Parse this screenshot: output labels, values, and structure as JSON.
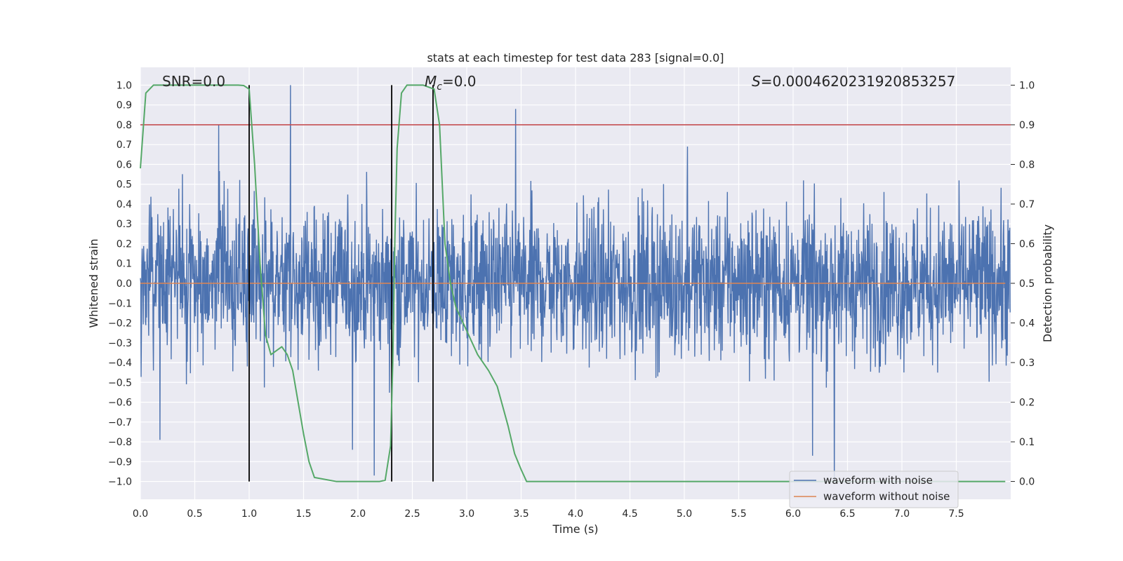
{
  "chart_data": {
    "type": "line",
    "title": "stats at each timestep for test data 283 [signal=0.0]",
    "xlabel": "Time (s)",
    "ylabel": "Whitened strain",
    "y2label": "Detection probability",
    "xlim": [
      0.0,
      8.0
    ],
    "ylim": [
      -1.09,
      1.09
    ],
    "y2lim": [
      -0.045,
      1.045
    ],
    "xticks": [
      0.0,
      0.5,
      1.0,
      1.5,
      2.0,
      2.5,
      3.0,
      3.5,
      4.0,
      4.5,
      5.0,
      5.5,
      6.0,
      6.5,
      7.0,
      7.5
    ],
    "yticks": [
      -1.0,
      -0.9,
      -0.8,
      -0.7,
      -0.6,
      -0.5,
      -0.4,
      -0.3,
      -0.2,
      -0.1,
      0.0,
      0.1,
      0.2,
      0.3,
      0.4,
      0.5,
      0.6,
      0.7,
      0.8,
      0.9,
      1.0
    ],
    "y2ticks": [
      0.0,
      0.1,
      0.2,
      0.3,
      0.4,
      0.5,
      0.6,
      0.7,
      0.8,
      0.9,
      1.0
    ],
    "annotations": {
      "snr": "SNR=0.0",
      "mc_symbol": "M",
      "mc_sub": "c",
      "mc_value": "=0.0",
      "s_symbol": "S",
      "s_value": "=0.0004620231920853257"
    },
    "threshold_line": {
      "axis": "y2",
      "value": 0.9,
      "color": "#c44e52"
    },
    "vertical_lines": [
      {
        "x": 1.0,
        "y2_range": [
          0.0,
          1.0
        ]
      },
      {
        "x": 2.31,
        "y2_range": [
          0.0,
          1.0
        ]
      },
      {
        "x": 2.69,
        "y2_range": [
          0.0,
          1.0
        ]
      }
    ],
    "series": [
      {
        "name": "waveform with noise",
        "axis": "y",
        "color": "#4c72b0",
        "description": "whitened noise, roughly -0.45..0.55 band with spikes",
        "notable_spikes": [
          {
            "x": 1.38,
            "y": 1.0
          },
          {
            "x": 3.45,
            "y": 0.88
          },
          {
            "x": 2.15,
            "y": -0.97
          },
          {
            "x": 6.38,
            "y": -1.0
          },
          {
            "x": 6.18,
            "y": -0.87
          },
          {
            "x": 1.95,
            "y": -0.84
          },
          {
            "x": 0.18,
            "y": -0.79
          },
          {
            "x": 0.72,
            "y": 0.8
          },
          {
            "x": 5.03,
            "y": 0.69
          }
        ]
      },
      {
        "name": "waveform without noise",
        "axis": "y",
        "color": "#dd8452",
        "x": [
          0.0,
          7.95
        ],
        "y": [
          0.0,
          0.0
        ]
      },
      {
        "name": "detection probability",
        "axis": "y2",
        "color": "#55a868",
        "x": [
          0.0,
          0.05,
          0.12,
          0.3,
          0.6,
          0.9,
          0.95,
          1.0,
          1.05,
          1.1,
          1.15,
          1.2,
          1.25,
          1.3,
          1.35,
          1.4,
          1.45,
          1.5,
          1.55,
          1.6,
          1.8,
          2.0,
          2.1,
          2.2,
          2.25,
          2.3,
          2.32,
          2.34,
          2.36,
          2.4,
          2.45,
          2.6,
          2.7,
          2.75,
          2.8,
          2.85,
          2.9,
          2.95,
          3.0,
          3.1,
          3.2,
          3.28,
          3.32,
          3.38,
          3.44,
          3.5,
          3.55,
          4.0,
          5.0,
          6.0,
          7.0,
          7.95
        ],
        "y": [
          0.79,
          0.98,
          1.0,
          1.0,
          1.0,
          1.0,
          0.999,
          0.99,
          0.8,
          0.55,
          0.37,
          0.32,
          0.33,
          0.34,
          0.32,
          0.28,
          0.2,
          0.12,
          0.05,
          0.01,
          0.0,
          0.0,
          0.0,
          0.0,
          0.003,
          0.09,
          0.3,
          0.62,
          0.84,
          0.98,
          1.0,
          1.0,
          0.99,
          0.9,
          0.6,
          0.5,
          0.44,
          0.41,
          0.38,
          0.32,
          0.28,
          0.24,
          0.2,
          0.14,
          0.07,
          0.03,
          0.0,
          0.0,
          0.0,
          0.0,
          0.0,
          0.0
        ]
      }
    ],
    "legend": {
      "placement": "lower-right",
      "entries": [
        {
          "label": "waveform with noise",
          "color": "#4c72b0"
        },
        {
          "label": "waveform without noise",
          "color": "#dd8452"
        }
      ]
    }
  }
}
